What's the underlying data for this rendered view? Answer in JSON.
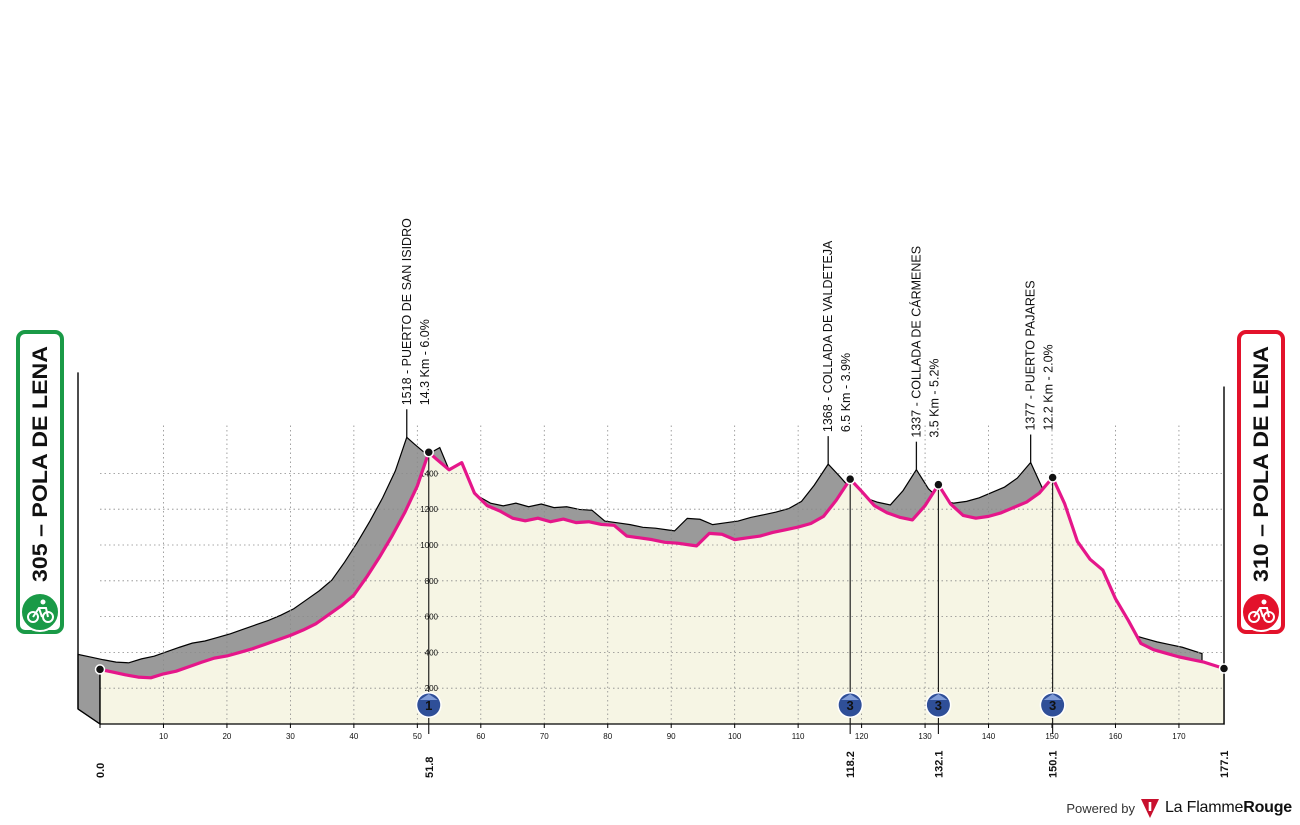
{
  "start_label": "305 – POLA DE LENA",
  "finish_label": "310 – POLA DE LENA",
  "footer": {
    "powered_by": "Powered by",
    "brand_light": "La Flamme",
    "brand_bold": "Rouge"
  },
  "colors": {
    "start": "#1a9a47",
    "finish": "#e3122b",
    "route": "#e5168a",
    "fill": "#f6f5e4",
    "side": "#9a9a9a",
    "marker": "#2f4f98"
  },
  "icons": [
    "bicycle-icon",
    "bicycle-icon"
  ],
  "chart_data": {
    "type": "area",
    "title": "",
    "xlabel": "",
    "ylabel": "",
    "xlim": [
      0,
      177.1
    ],
    "ylim": [
      0,
      1600
    ],
    "x_ticks": [
      0,
      10,
      20,
      30,
      40,
      50,
      60,
      70,
      80,
      90,
      100,
      110,
      120,
      130,
      140,
      150,
      160,
      170
    ],
    "y_ticks": [
      200,
      400,
      600,
      800,
      1000,
      1200,
      1400
    ],
    "grid": true,
    "series": [
      {
        "x": [
          0,
          2,
          4,
          6,
          8,
          10,
          12,
          14,
          16,
          18,
          20,
          22,
          24,
          26,
          28,
          30,
          32,
          34,
          36,
          38,
          40,
          42,
          44,
          46,
          48,
          50,
          51.8,
          53,
          55,
          57,
          59,
          61,
          63,
          65,
          67,
          69,
          71,
          73,
          75,
          77,
          79,
          81,
          83,
          85,
          87,
          89,
          91,
          93,
          94,
          96,
          98,
          100,
          102,
          104,
          106,
          108,
          110,
          112,
          114,
          116,
          118.2,
          120,
          122,
          124,
          126,
          128,
          130,
          132.1,
          134,
          136,
          138,
          140,
          142,
          144,
          146,
          148,
          150.1,
          152,
          154,
          156,
          158,
          160,
          162,
          164,
          166,
          168,
          170,
          172,
          174,
          177.1
        ],
        "y": [
          305,
          290,
          275,
          262,
          258,
          280,
          295,
          320,
          345,
          368,
          380,
          400,
          420,
          445,
          470,
          495,
          525,
          560,
          610,
          660,
          720,
          820,
          930,
          1050,
          1180,
          1330,
          1518,
          1480,
          1420,
          1460,
          1290,
          1220,
          1190,
          1150,
          1135,
          1150,
          1130,
          1145,
          1125,
          1130,
          1115,
          1110,
          1050,
          1040,
          1030,
          1015,
          1010,
          1000,
          995,
          1065,
          1060,
          1030,
          1040,
          1050,
          1070,
          1085,
          1100,
          1120,
          1160,
          1250,
          1368,
          1300,
          1220,
          1180,
          1155,
          1140,
          1220,
          1337,
          1230,
          1165,
          1150,
          1160,
          1180,
          1210,
          1240,
          1290,
          1377,
          1230,
          1020,
          920,
          860,
          700,
          580,
          450,
          415,
          395,
          375,
          360,
          345,
          310
        ]
      }
    ],
    "km_markers": [
      0.0,
      51.8,
      118.2,
      132.1,
      150.1,
      177.1
    ],
    "km_marker_labels": [
      "0.0",
      "51.8",
      "118.2",
      "132.1",
      "150.1",
      "177.1"
    ],
    "climbs": [
      {
        "km": 51.8,
        "elev": 1518,
        "name": "1518 - PUERTO DE SAN ISIDRO",
        "detail": "14.3 Km - 6.0%",
        "category": "1"
      },
      {
        "km": 118.2,
        "elev": 1368,
        "name": "1368 - COLLADA DE VALDETEJA",
        "detail": "6.5 Km - 3.9%",
        "category": "3"
      },
      {
        "km": 132.1,
        "elev": 1337,
        "name": "1337 - COLLADA DE CÁRMENES",
        "detail": "3.5 Km - 5.2%",
        "category": "3"
      },
      {
        "km": 150.1,
        "elev": 1377,
        "name": "1377 - PUERTO PAJARES",
        "detail": "12.2 Km - 2.0%",
        "category": "3"
      }
    ]
  }
}
